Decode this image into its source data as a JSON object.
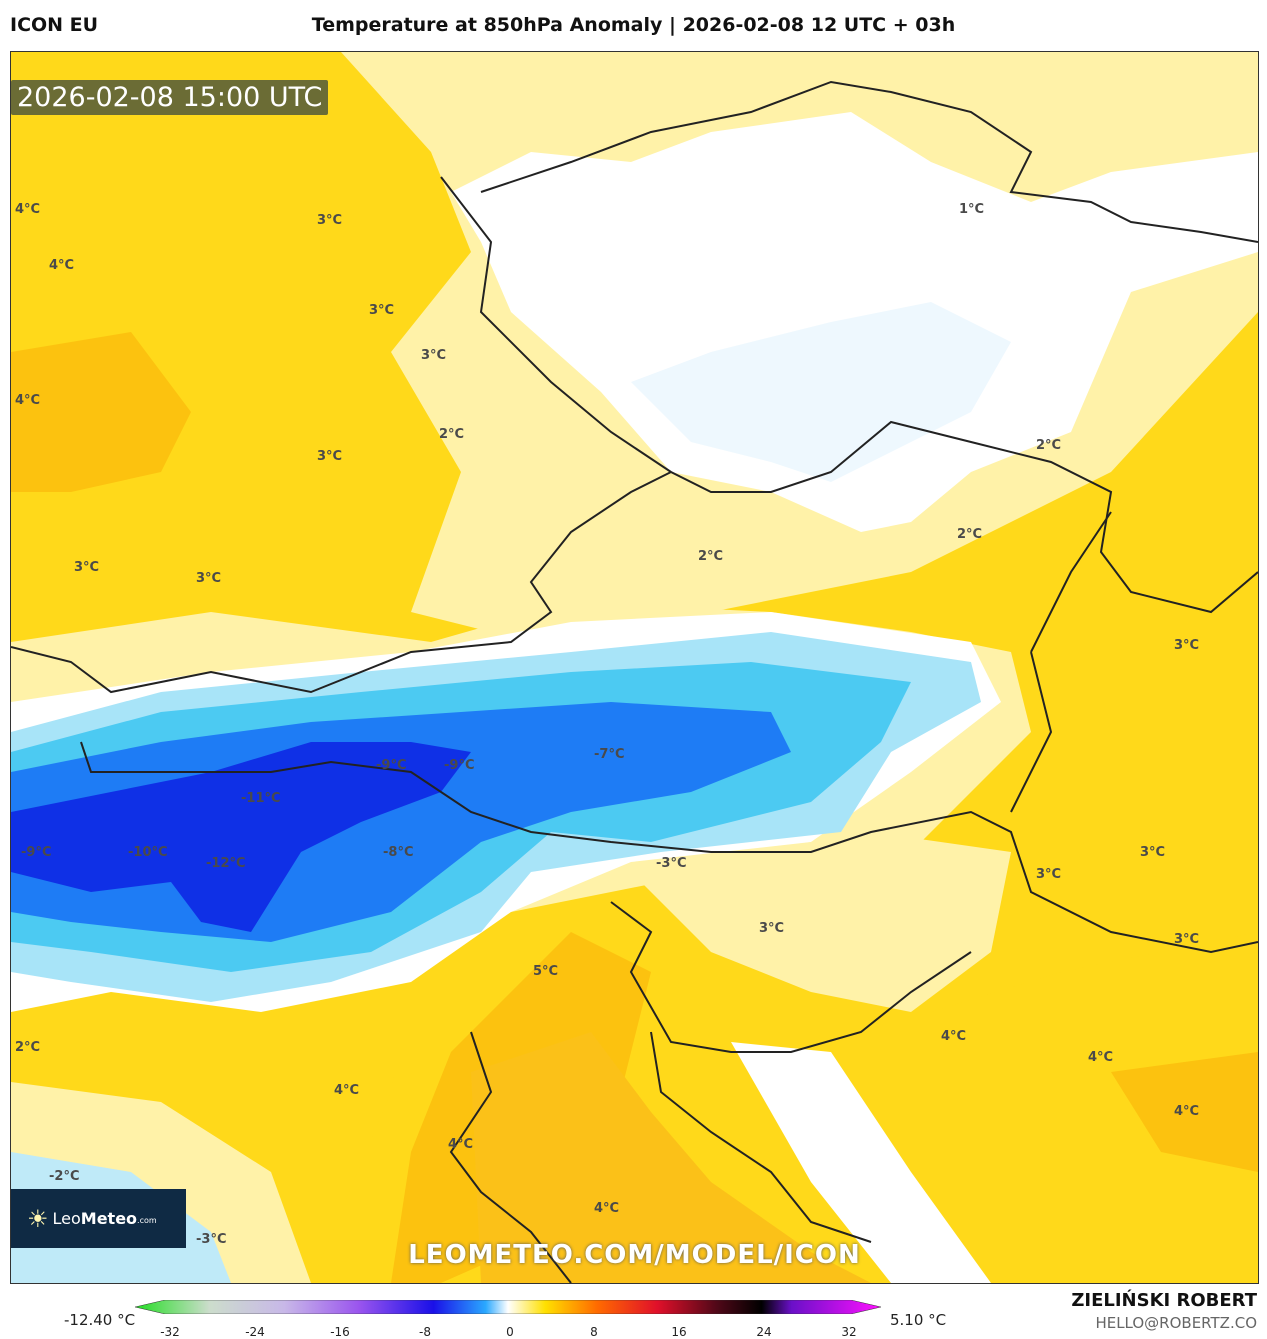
{
  "header": {
    "model": "ICON EU",
    "title": "Temperature at 850hPa Anomaly | 2026-02-08 12 UTC + 03h"
  },
  "map": {
    "timestamp": "2026-02-08 15:00 UTC",
    "watermark": "LEOMETEO.COM/MODEL/ICON",
    "logo": {
      "name_light": "Leo",
      "name_bold": "Meteo",
      "suffix": ".com"
    },
    "labels": [
      "4°C",
      "3°C",
      "4°C",
      "3°C",
      "3°C",
      "4°C",
      "2°C",
      "3°C",
      "1°C",
      "2°C",
      "2°C",
      "2°C",
      "3°C",
      "3°C",
      "3°C",
      "-9°C",
      "-9°C",
      "-7°C",
      "-11°C",
      "-9°C",
      "-10°C",
      "-12°C",
      "-8°C",
      "-3°C",
      "3°C",
      "3°C",
      "3°C",
      "5°C",
      "3°C",
      "2°C",
      "4°C",
      "4°C",
      "4°C",
      "4°C",
      "4°C",
      "-2°C",
      "4°C",
      "-3°C",
      "4°C"
    ]
  },
  "colorbar": {
    "min_label": "-12.40 °C",
    "max_label": "5.10 °C",
    "ticks": [
      "-32",
      "-24",
      "-16",
      "-8",
      "0",
      "8",
      "16",
      "24",
      "32"
    ]
  },
  "footer": {
    "author": "ZIELIŃSKI ROBERT",
    "email": "HELLO@ROBERTZ.CO"
  }
}
